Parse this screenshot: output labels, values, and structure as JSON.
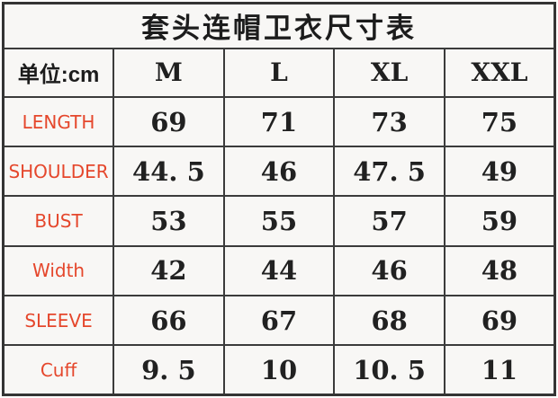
{
  "title": "套头连帽卫衣尺寸表",
  "table": {
    "unit_header": "单位:cm",
    "size_columns": [
      "M",
      "L",
      "XL",
      "XXL"
    ],
    "rows": [
      {
        "label": "LENGTH",
        "values": [
          "69",
          "71",
          "73",
          "75"
        ]
      },
      {
        "label": "SHOULDER",
        "values": [
          "44. 5",
          "46",
          "47. 5",
          "49"
        ]
      },
      {
        "label": "BUST",
        "values": [
          "53",
          "55",
          "57",
          "59"
        ]
      },
      {
        "label": "Width",
        "values": [
          "42",
          "44",
          "46",
          "48"
        ]
      },
      {
        "label": "SLEEVE",
        "values": [
          "66",
          "67",
          "68",
          "69"
        ]
      },
      {
        "label": "Cuff",
        "values": [
          "9. 5",
          "10",
          "10. 5",
          "11"
        ]
      }
    ]
  },
  "colors": {
    "label_red": "#e5472c",
    "text_black": "#1f1f1f",
    "border_gray": "#3b3b3b",
    "cell_background": "#f8f7f5"
  },
  "chart_data": {
    "type": "table",
    "title": "套头连帽卫衣尺寸表",
    "unit": "cm",
    "columns": [
      "单位:cm",
      "M",
      "L",
      "XL",
      "XXL"
    ],
    "rows": [
      [
        "LENGTH",
        69,
        71,
        73,
        75
      ],
      [
        "SHOULDER",
        44.5,
        46,
        47.5,
        49
      ],
      [
        "BUST",
        53,
        55,
        57,
        59
      ],
      [
        "Width",
        42,
        44,
        46,
        48
      ],
      [
        "SLEEVE",
        66,
        67,
        68,
        69
      ],
      [
        "Cuff",
        9.5,
        10,
        10.5,
        11
      ]
    ]
  }
}
